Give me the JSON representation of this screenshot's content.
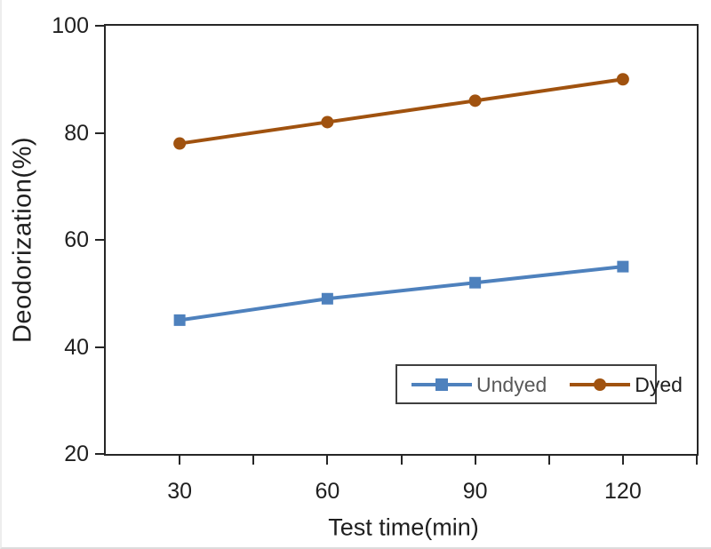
{
  "chart_data": {
    "type": "line",
    "xlabel": "Test time(min)",
    "ylabel": "Deodorization(%)",
    "x": [
      30,
      60,
      90,
      120
    ],
    "xlim": [
      15,
      135
    ],
    "ylim": [
      20,
      100
    ],
    "y_ticks": [
      100,
      80,
      60,
      40,
      20
    ],
    "x_ticks_minor": [
      30,
      45,
      60,
      75,
      90,
      105,
      120,
      135
    ],
    "x_tick_labels": [
      "30",
      "60",
      "90",
      "120"
    ],
    "y_tick_labels": [
      "100",
      "80",
      "60",
      "40",
      "20"
    ],
    "grid": false,
    "axis_color": "#262626",
    "legend_position": "inside-bottom-right",
    "series": [
      {
        "name": "Undyed",
        "marker": "square",
        "color": "#4E81BD",
        "label_color": "#595959",
        "values": [
          45,
          49,
          52,
          55
        ]
      },
      {
        "name": "Dyed",
        "marker": "circle",
        "color": "#A0520F",
        "label_color": "#1f1f1f",
        "values": [
          78,
          82,
          86,
          90
        ]
      }
    ]
  }
}
